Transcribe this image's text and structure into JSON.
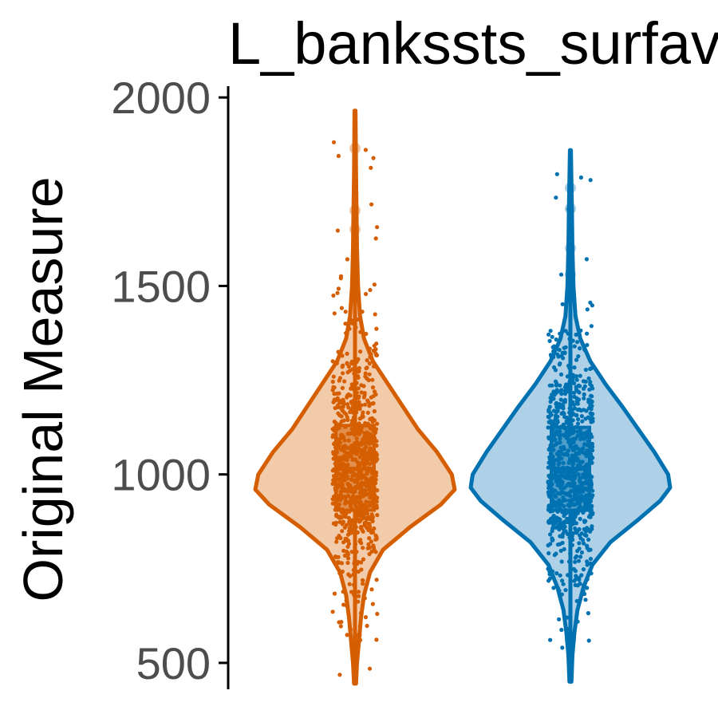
{
  "chart_data": {
    "type": "violin",
    "title": "L_bankssts_surfav",
    "xlabel": "",
    "ylabel": "Original Measure",
    "ylim": [
      430,
      2030
    ],
    "yticks": [
      "500",
      "1000",
      "1500",
      "2000"
    ],
    "grid": false,
    "legend": "none",
    "series": [
      {
        "color": "#d55e00",
        "fill": "#f2cbab",
        "min": 445,
        "max": 1965,
        "q1": 905,
        "median": 1015,
        "q3": 1130,
        "density": [
          [
            445,
            0.01
          ],
          [
            500,
            0.02
          ],
          [
            560,
            0.04
          ],
          [
            620,
            0.06
          ],
          [
            680,
            0.09
          ],
          [
            740,
            0.15
          ],
          [
            800,
            0.28
          ],
          [
            860,
            0.55
          ],
          [
            920,
            0.86
          ],
          [
            960,
            1.0
          ],
          [
            1000,
            0.97
          ],
          [
            1060,
            0.82
          ],
          [
            1120,
            0.63
          ],
          [
            1180,
            0.48
          ],
          [
            1240,
            0.33
          ],
          [
            1300,
            0.18
          ],
          [
            1360,
            0.09
          ],
          [
            1420,
            0.05
          ],
          [
            1500,
            0.03
          ],
          [
            1600,
            0.02
          ],
          [
            1700,
            0.015
          ],
          [
            1800,
            0.01
          ],
          [
            1965,
            0.005
          ]
        ],
        "outliers": [
          1865,
          1700,
          1650,
          560
        ]
      },
      {
        "color": "#0072b2",
        "fill": "#aed1e8",
        "min": 450,
        "max": 1860,
        "q1": 905,
        "median": 1015,
        "q3": 1125,
        "density": [
          [
            450,
            0.01
          ],
          [
            520,
            0.02
          ],
          [
            580,
            0.04
          ],
          [
            640,
            0.07
          ],
          [
            700,
            0.13
          ],
          [
            760,
            0.22
          ],
          [
            820,
            0.4
          ],
          [
            880,
            0.68
          ],
          [
            930,
            0.9
          ],
          [
            965,
            1.0
          ],
          [
            1000,
            0.98
          ],
          [
            1060,
            0.84
          ],
          [
            1120,
            0.68
          ],
          [
            1180,
            0.52
          ],
          [
            1240,
            0.35
          ],
          [
            1300,
            0.2
          ],
          [
            1360,
            0.1
          ],
          [
            1420,
            0.05
          ],
          [
            1500,
            0.03
          ],
          [
            1600,
            0.02
          ],
          [
            1700,
            0.015
          ],
          [
            1860,
            0.005
          ]
        ],
        "outliers": [
          1760,
          1705,
          1600,
          1530,
          560
        ]
      }
    ]
  }
}
